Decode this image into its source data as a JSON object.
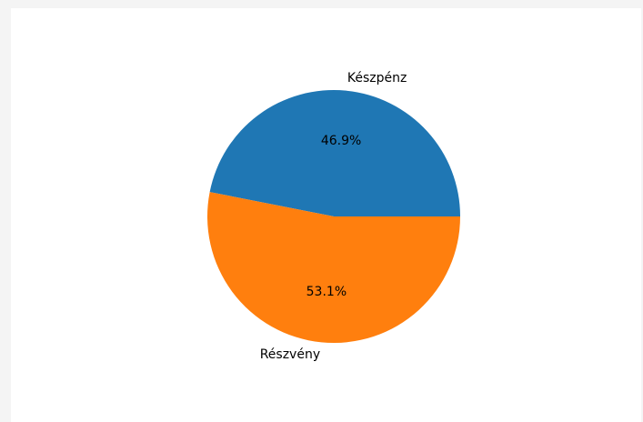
{
  "chart_data": {
    "type": "pie",
    "title": "",
    "categories": [
      "Készpénz",
      "Részvény"
    ],
    "values": [
      46.9,
      53.1
    ],
    "labels": [
      "46.9%",
      "53.1%"
    ],
    "colors": [
      "#1f77b4",
      "#ff7f0e"
    ],
    "legend": "none",
    "grid": false
  }
}
